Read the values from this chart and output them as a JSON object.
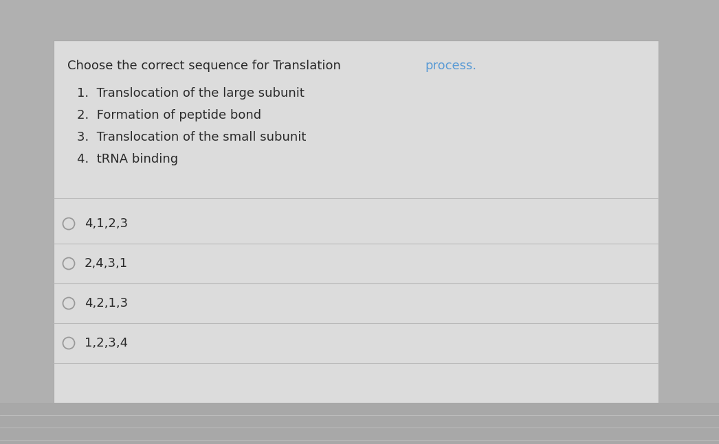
{
  "title_part1": "Choose the correct sequence for Translation ",
  "title_part2": "process.",
  "title_color1": "#2a2a2a",
  "title_color2": "#5b9bd5",
  "numbered_items": [
    "Translocation of the large subunit",
    "Formation of peptide bond",
    "Translocation of the small subunit",
    "tRNA binding"
  ],
  "options": [
    "4,1,2,3",
    "2,4,3,1",
    "4,2,1,3",
    "1,2,3,4"
  ],
  "outer_bg": "#b0b0b0",
  "card_bg": "#dcdcdc",
  "separator_color": "#b8b8b8",
  "text_color": "#2a2a2a",
  "circle_color": "#999999",
  "bottom_strip_color": "#a0a0a0",
  "title_fontsize": 13.0,
  "item_fontsize": 13.0,
  "option_fontsize": 13.0
}
